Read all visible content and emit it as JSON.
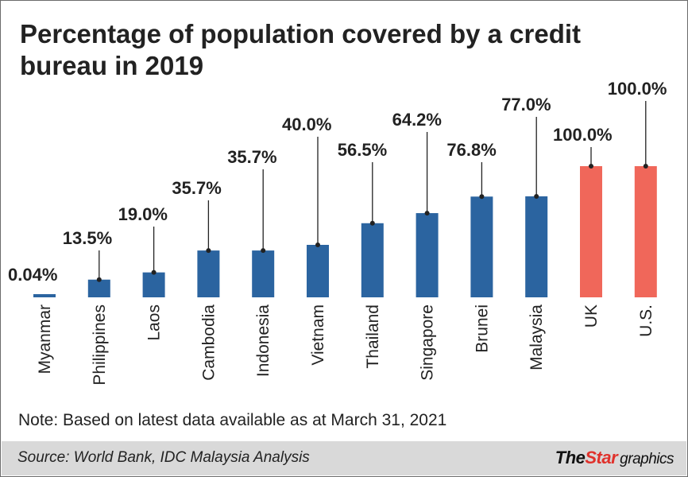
{
  "title": "Percentage of population covered by a credit bureau in 2019",
  "note": "Note: Based on latest data available as at March 31, 2021",
  "source": "Source: World Bank, IDC Malaysia Analysis",
  "brand": {
    "part1": "The",
    "part2": "Star",
    "part3": "graphics"
  },
  "colors": {
    "asean": "#2b64a0",
    "benchmark": "#f0675a",
    "footer": "#d9d9d9"
  },
  "chart_data": {
    "type": "bar",
    "title": "Percentage of population covered by a credit bureau in 2019",
    "categories": [
      "Myanmar",
      "Philippines",
      "Laos",
      "Cambodia",
      "Indonesia",
      "Vietnam",
      "Thailand",
      "Singapore",
      "Brunei",
      "Malaysia",
      "UK",
      "U.S."
    ],
    "values": [
      0.04,
      13.5,
      19.0,
      35.7,
      35.7,
      40.0,
      56.5,
      64.2,
      76.8,
      77.0,
      100.0,
      100.0
    ],
    "labels": [
      "0.04%",
      "13.5%",
      "19.0%",
      "35.7%",
      "35.7%",
      "40.0%",
      "56.5%",
      "64.2%",
      "76.8%",
      "77.0%",
      "100.0%",
      "100.0%"
    ],
    "highlight": [
      "UK",
      "U.S."
    ],
    "ylim": [
      0,
      100
    ],
    "grid": false,
    "xlabel": "",
    "ylabel": ""
  }
}
